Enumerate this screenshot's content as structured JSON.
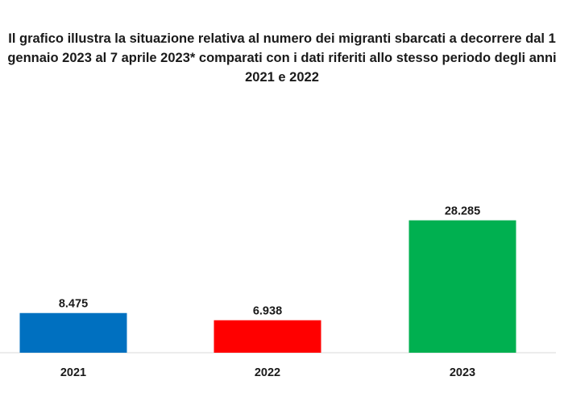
{
  "chart_data": {
    "type": "bar",
    "title_lines": [
      "Il grafico illustra la situazione relativa al numero dei migranti sbarcati a decorrere dal 1",
      "gennaio 2023 al 7 aprile 2023* comparati con i dati riferiti allo stesso periodo degli anni",
      "2021 e 2022"
    ],
    "categories": [
      "2021",
      "2022",
      "2023"
    ],
    "values": [
      8475,
      6938,
      28285
    ],
    "value_labels": [
      "8.475",
      "6.938",
      "28.285"
    ],
    "colors": [
      "#0070c0",
      "#ff0000",
      "#00b050"
    ],
    "xlabel": "",
    "ylabel": "",
    "ylim": [
      0,
      32000
    ],
    "grid": false
  }
}
